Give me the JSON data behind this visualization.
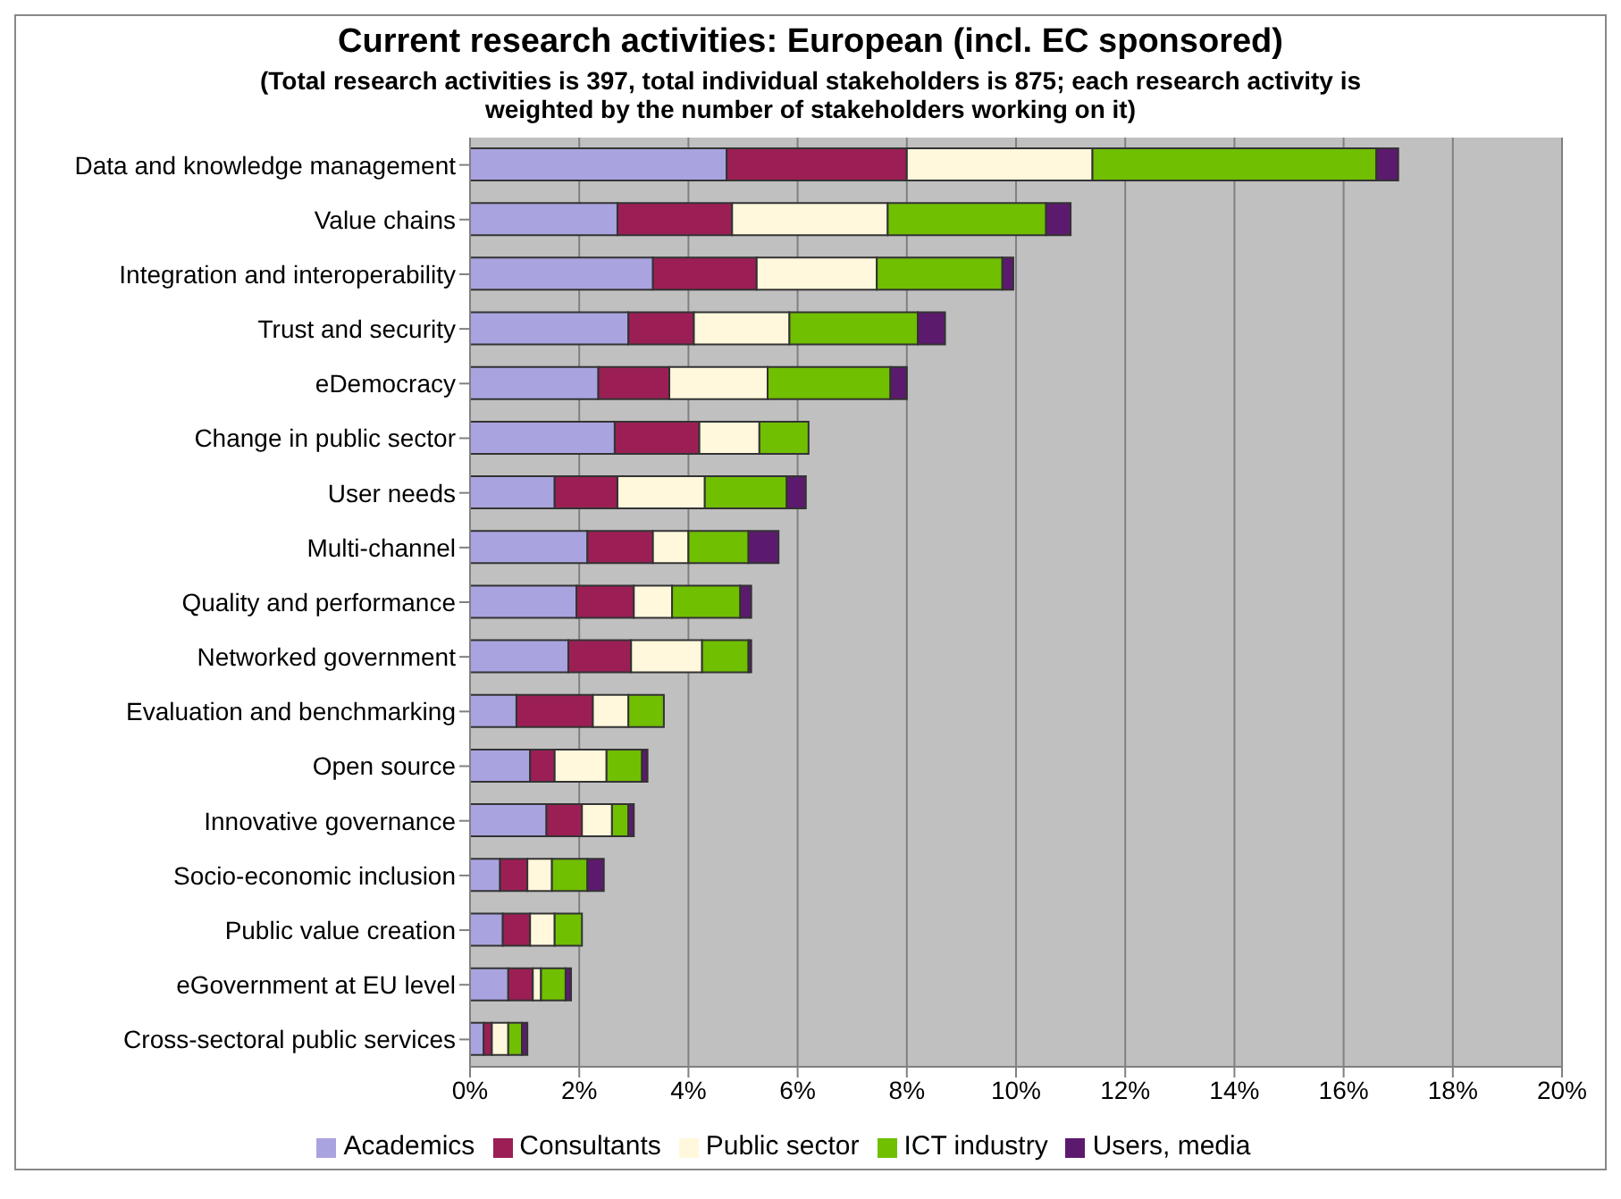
{
  "chart_data": {
    "type": "bar",
    "orientation": "horizontal",
    "stacked": true,
    "title": "Current research activities: European (incl. EC sponsored)",
    "subtitle": "(Total research activities is 397, total individual stakeholders is 875; each research activity is weighted by the number of stakeholders working on it)",
    "categories": [
      "Data and knowledge management",
      "Value chains",
      "Integration and interoperability",
      "Trust and security",
      "eDemocracy",
      "Change in public sector",
      "User needs",
      "Multi-channel",
      "Quality and performance",
      "Networked government",
      "Evaluation and benchmarking",
      "Open source",
      "Innovative governance",
      "Socio-economic inclusion",
      "Public value creation",
      "eGovernment at EU level",
      "Cross-sectoral public services"
    ],
    "series": [
      {
        "name": "Academics",
        "color": "#a9a4e0",
        "values": [
          4.7,
          2.7,
          3.35,
          2.9,
          2.35,
          2.65,
          1.55,
          2.15,
          1.95,
          1.8,
          0.85,
          1.1,
          1.4,
          0.55,
          0.6,
          0.7,
          0.25
        ]
      },
      {
        "name": "Consultants",
        "color": "#9b1f55",
        "values": [
          3.3,
          2.1,
          1.9,
          1.2,
          1.3,
          1.55,
          1.15,
          1.2,
          1.05,
          1.15,
          1.4,
          0.45,
          0.65,
          0.5,
          0.5,
          0.45,
          0.15
        ]
      },
      {
        "name": "Public sector",
        "color": "#fff8dc",
        "values": [
          3.4,
          2.85,
          2.2,
          1.75,
          1.8,
          1.1,
          1.6,
          0.65,
          0.7,
          1.3,
          0.65,
          0.95,
          0.55,
          0.45,
          0.45,
          0.15,
          0.3
        ]
      },
      {
        "name": "ICT industry",
        "color": "#70bf00",
        "values": [
          5.2,
          2.9,
          2.3,
          2.35,
          2.25,
          0.9,
          1.5,
          1.1,
          1.25,
          0.85,
          0.65,
          0.65,
          0.3,
          0.65,
          0.5,
          0.45,
          0.25
        ]
      },
      {
        "name": "Users, media",
        "color": "#5c1a6e",
        "values": [
          0.4,
          0.45,
          0.2,
          0.5,
          0.3,
          0,
          0.35,
          0.55,
          0.2,
          0.05,
          0,
          0.1,
          0.1,
          0.3,
          0,
          0.1,
          0.1
        ]
      }
    ],
    "xlim": [
      0,
      20
    ],
    "xticks": [
      {
        "value": 0,
        "label": "0%"
      },
      {
        "value": 2,
        "label": "2%"
      },
      {
        "value": 4,
        "label": "4%"
      },
      {
        "value": 6,
        "label": "6%"
      },
      {
        "value": 8,
        "label": "8%"
      },
      {
        "value": 10,
        "label": "10%"
      },
      {
        "value": 12,
        "label": "12%"
      },
      {
        "value": 14,
        "label": "14%"
      },
      {
        "value": 16,
        "label": "16%"
      },
      {
        "value": 18,
        "label": "18%"
      },
      {
        "value": 20,
        "label": "20%"
      }
    ],
    "grid": "x",
    "legend": "bottom"
  }
}
